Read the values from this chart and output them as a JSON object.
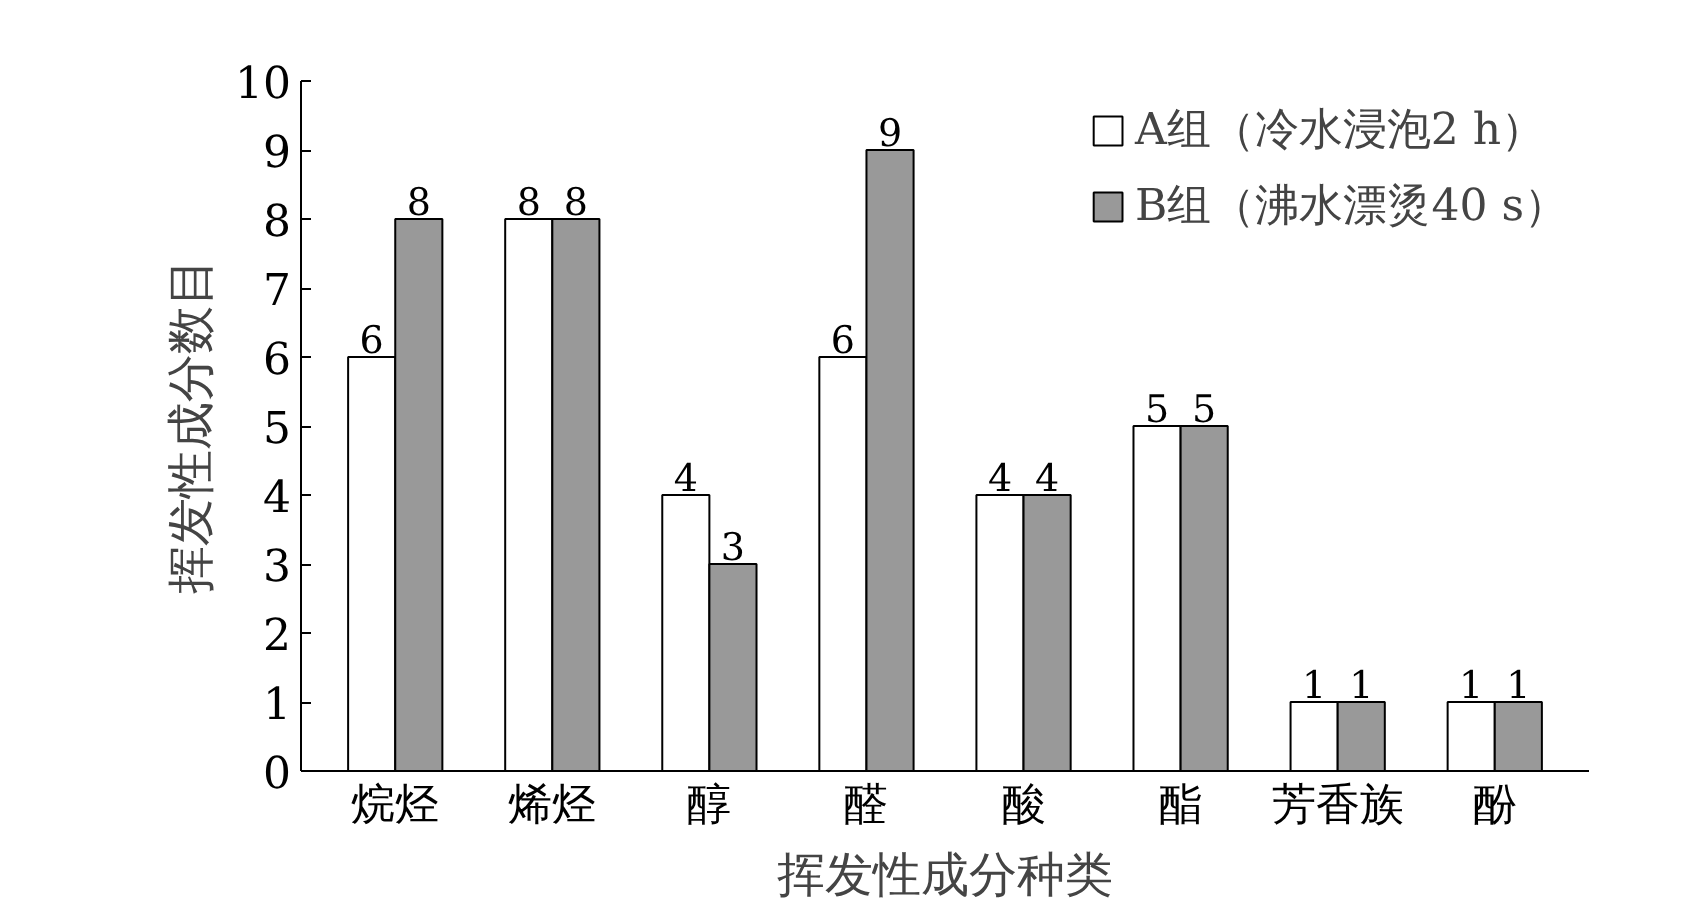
{
  "chart_data": {
    "type": "bar",
    "xlabel": "挥发性成分种类",
    "ylabel": "挥发性成分数目",
    "categories": [
      "烷烃",
      "烯烃",
      "醇",
      "醛",
      "酸",
      "酯",
      "芳香族",
      "酚"
    ],
    "series": [
      {
        "name": "A组（冷水浸泡2 h）",
        "color": "#ffffff",
        "values": [
          6,
          8,
          4,
          6,
          4,
          5,
          1,
          1
        ]
      },
      {
        "name": "B组（沸水漂烫40 s）",
        "color": "#999999",
        "values": [
          8,
          8,
          3,
          9,
          4,
          5,
          1,
          1
        ]
      }
    ],
    "ylim": [
      0,
      10
    ],
    "yticks": [
      0,
      1,
      2,
      3,
      4,
      5,
      6,
      7,
      8,
      9,
      10
    ],
    "grid": false,
    "legend": "top right",
    "data_labels": true
  }
}
